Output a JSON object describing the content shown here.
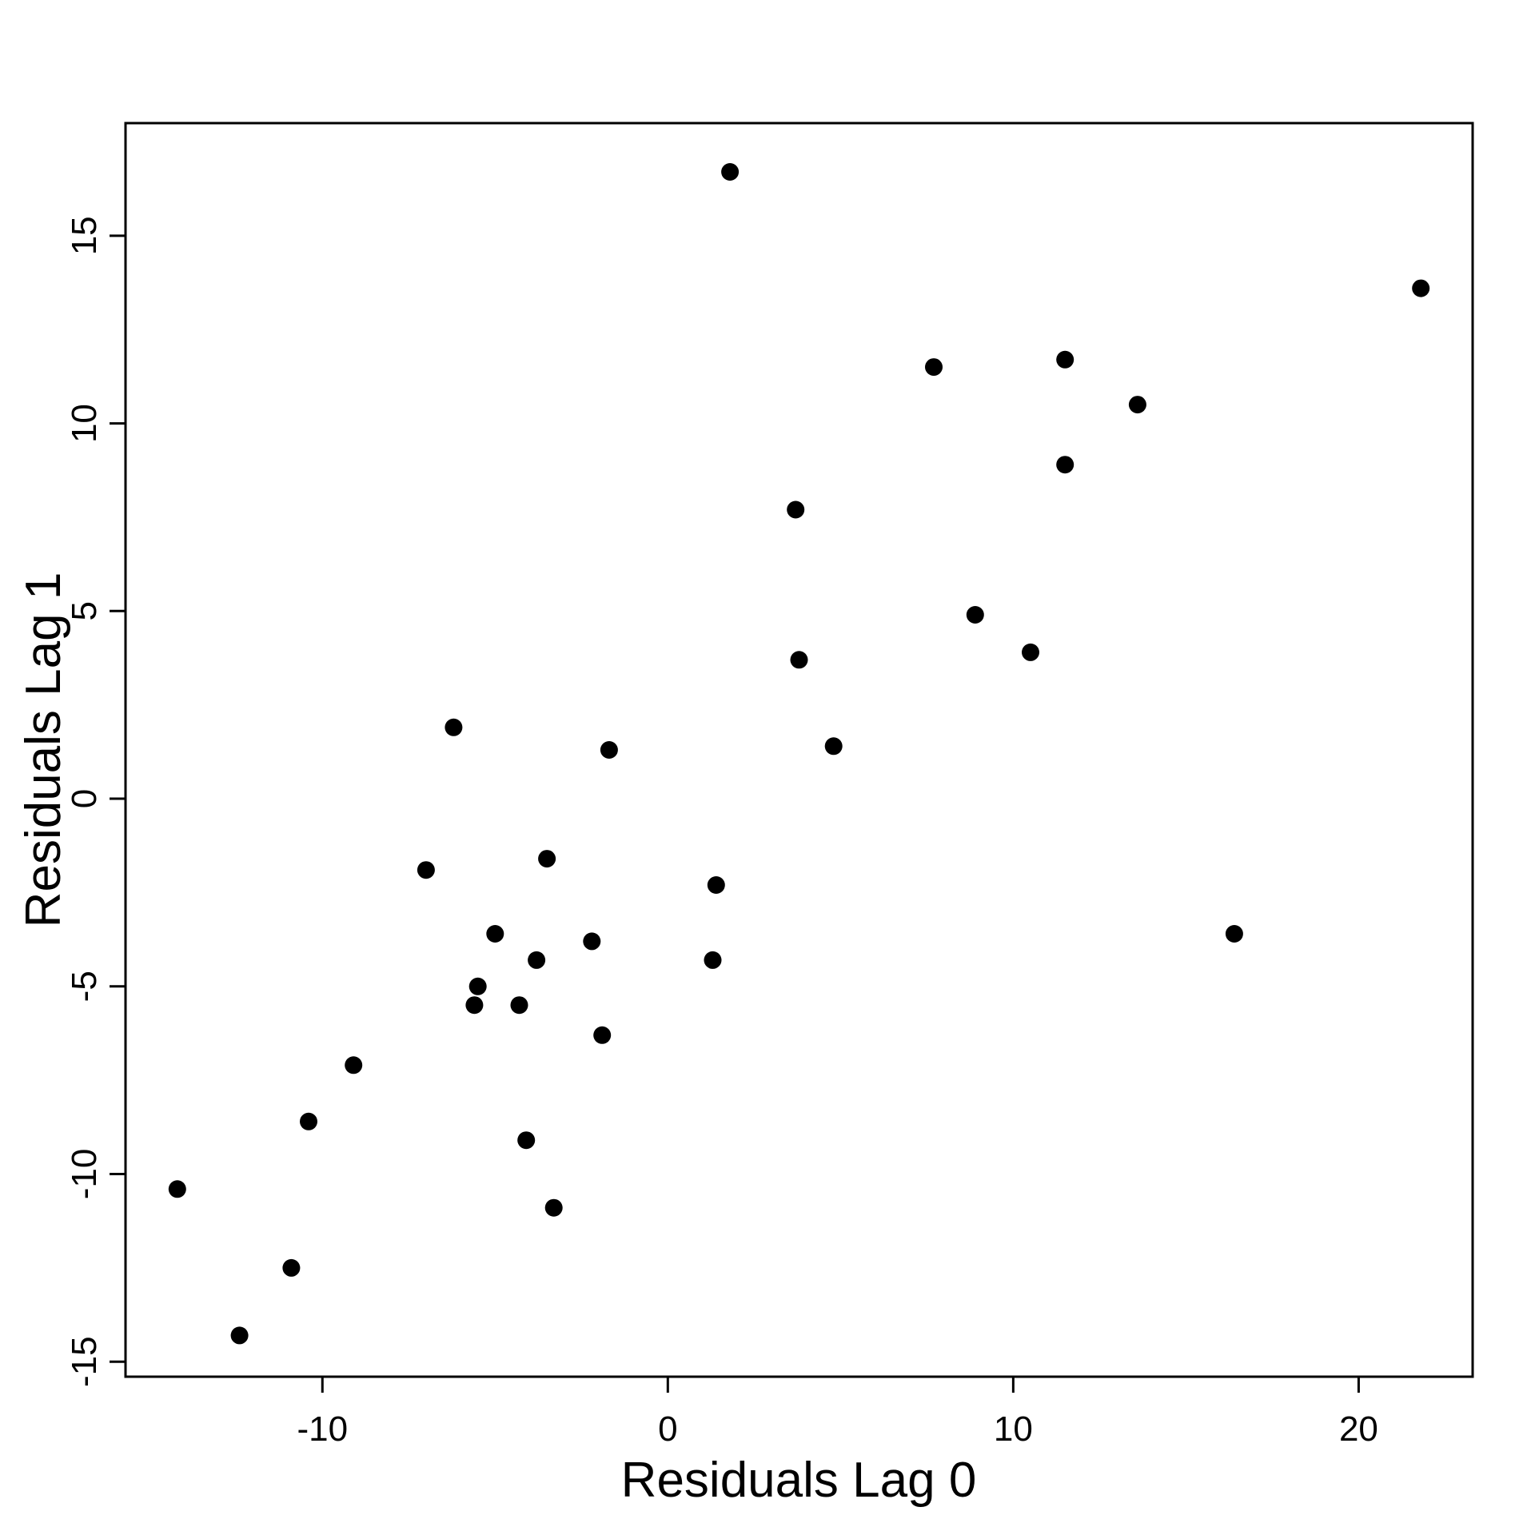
{
  "figure": {
    "background_color": "#ffffff",
    "point_color": "#000000",
    "axis_color": "#000000"
  },
  "chart_data": {
    "type": "scatter",
    "title": "",
    "xlabel": "Residuals Lag 0",
    "ylabel": "Residuals Lag 1",
    "xlim": [
      -15.7,
      23.3
    ],
    "ylim": [
      -15.4,
      18.0
    ],
    "x_ticks": [
      "-10",
      "0",
      "10",
      "20"
    ],
    "x_tick_values": [
      -10,
      0,
      10,
      20
    ],
    "y_ticks": [
      "-15",
      "-10",
      "-5",
      "0",
      "5",
      "10",
      "15"
    ],
    "y_tick_values": [
      -15,
      -10,
      -5,
      0,
      5,
      10,
      15
    ],
    "grid": false,
    "legend": null,
    "marker": "filled-circle",
    "points": [
      [
        1.8,
        16.7
      ],
      [
        21.8,
        13.6
      ],
      [
        13.6,
        10.5
      ],
      [
        11.5,
        11.7
      ],
      [
        7.7,
        11.5
      ],
      [
        11.5,
        8.9
      ],
      [
        3.7,
        7.7
      ],
      [
        8.9,
        4.9
      ],
      [
        10.5,
        3.9
      ],
      [
        3.8,
        3.7
      ],
      [
        -6.2,
        1.9
      ],
      [
        4.8,
        1.4
      ],
      [
        -1.7,
        1.3
      ],
      [
        -7.0,
        -1.9
      ],
      [
        -3.5,
        -1.6
      ],
      [
        1.4,
        -2.3
      ],
      [
        16.4,
        -3.6
      ],
      [
        -5.0,
        -3.6
      ],
      [
        -2.2,
        -3.8
      ],
      [
        -3.8,
        -4.3
      ],
      [
        1.3,
        -4.3
      ],
      [
        -5.5,
        -5.0
      ],
      [
        -5.6,
        -5.5
      ],
      [
        -4.3,
        -5.5
      ],
      [
        -1.9,
        -6.3
      ],
      [
        -9.1,
        -7.1
      ],
      [
        -10.4,
        -8.6
      ],
      [
        -4.1,
        -9.1
      ],
      [
        -14.2,
        -10.4
      ],
      [
        -3.3,
        -10.9
      ],
      [
        -10.9,
        -12.5
      ],
      [
        -12.4,
        -14.3
      ]
    ]
  }
}
